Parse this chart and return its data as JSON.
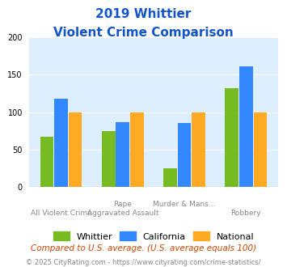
{
  "title_line1": "2019 Whittier",
  "title_line2": "Violent Crime Comparison",
  "categories": [
    "All Violent Crime",
    "Rape\nAggravated Assault",
    "Murder & Mans...\n",
    "Robbery"
  ],
  "cat_labels_top": [
    "",
    "Rape",
    "Murder & Mans...",
    ""
  ],
  "cat_labels_bottom": [
    "All Violent Crime",
    "Aggravated Assault",
    "",
    "Robbery"
  ],
  "whittier": [
    67,
    75,
    25,
    132
  ],
  "california": [
    118,
    87,
    86,
    161
  ],
  "national": [
    100,
    100,
    100,
    100
  ],
  "color_whittier": "#77bb22",
  "color_california": "#3388ff",
  "color_national": "#ffaa22",
  "ylim": [
    0,
    200
  ],
  "yticks": [
    0,
    50,
    100,
    150,
    200
  ],
  "legend_labels": [
    "Whittier",
    "California",
    "National"
  ],
  "footnote1": "Compared to U.S. average. (U.S. average equals 100)",
  "footnote2": "© 2025 CityRating.com - https://www.cityrating.com/crime-statistics/",
  "title_color": "#1155cc",
  "background_color": "#ddeeff",
  "plot_bg_color": "#ddeeff"
}
